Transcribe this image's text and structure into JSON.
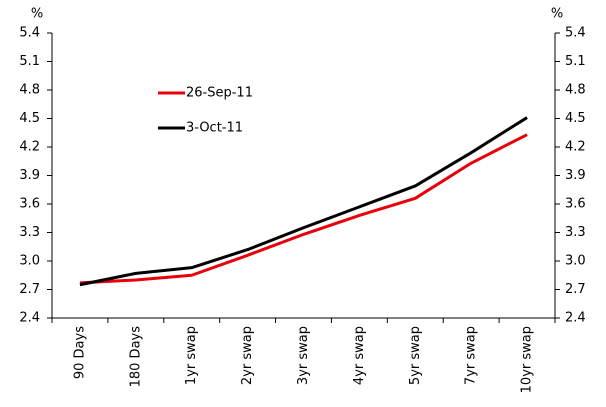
{
  "chart_data": {
    "type": "line",
    "ylabel": "%",
    "categories": [
      "90 Days",
      "180 Days",
      "1yr swap",
      "2yr swap",
      "3yr swap",
      "4yr swap",
      "5yr swap",
      "7yr swap",
      "10yr swap"
    ],
    "series": [
      {
        "name": "26-Sep-11",
        "color": "#e8000b",
        "values": [
          2.77,
          2.8,
          2.85,
          3.06,
          3.28,
          3.48,
          3.66,
          4.03,
          4.33
        ]
      },
      {
        "name": "3-Oct-11",
        "color": "#000000",
        "values": [
          2.75,
          2.87,
          2.93,
          3.12,
          3.35,
          3.57,
          3.79,
          4.14,
          4.51
        ]
      }
    ],
    "ylim": [
      2.4,
      5.4
    ],
    "yticks": [
      2.4,
      2.7,
      {
        "value": 3,
        "label": "3.0"
      },
      3.3,
      3.6,
      3.9,
      4.2,
      4.5,
      4.8,
      5.1,
      5.4
    ],
    "legend": "upper left",
    "grid": false
  }
}
